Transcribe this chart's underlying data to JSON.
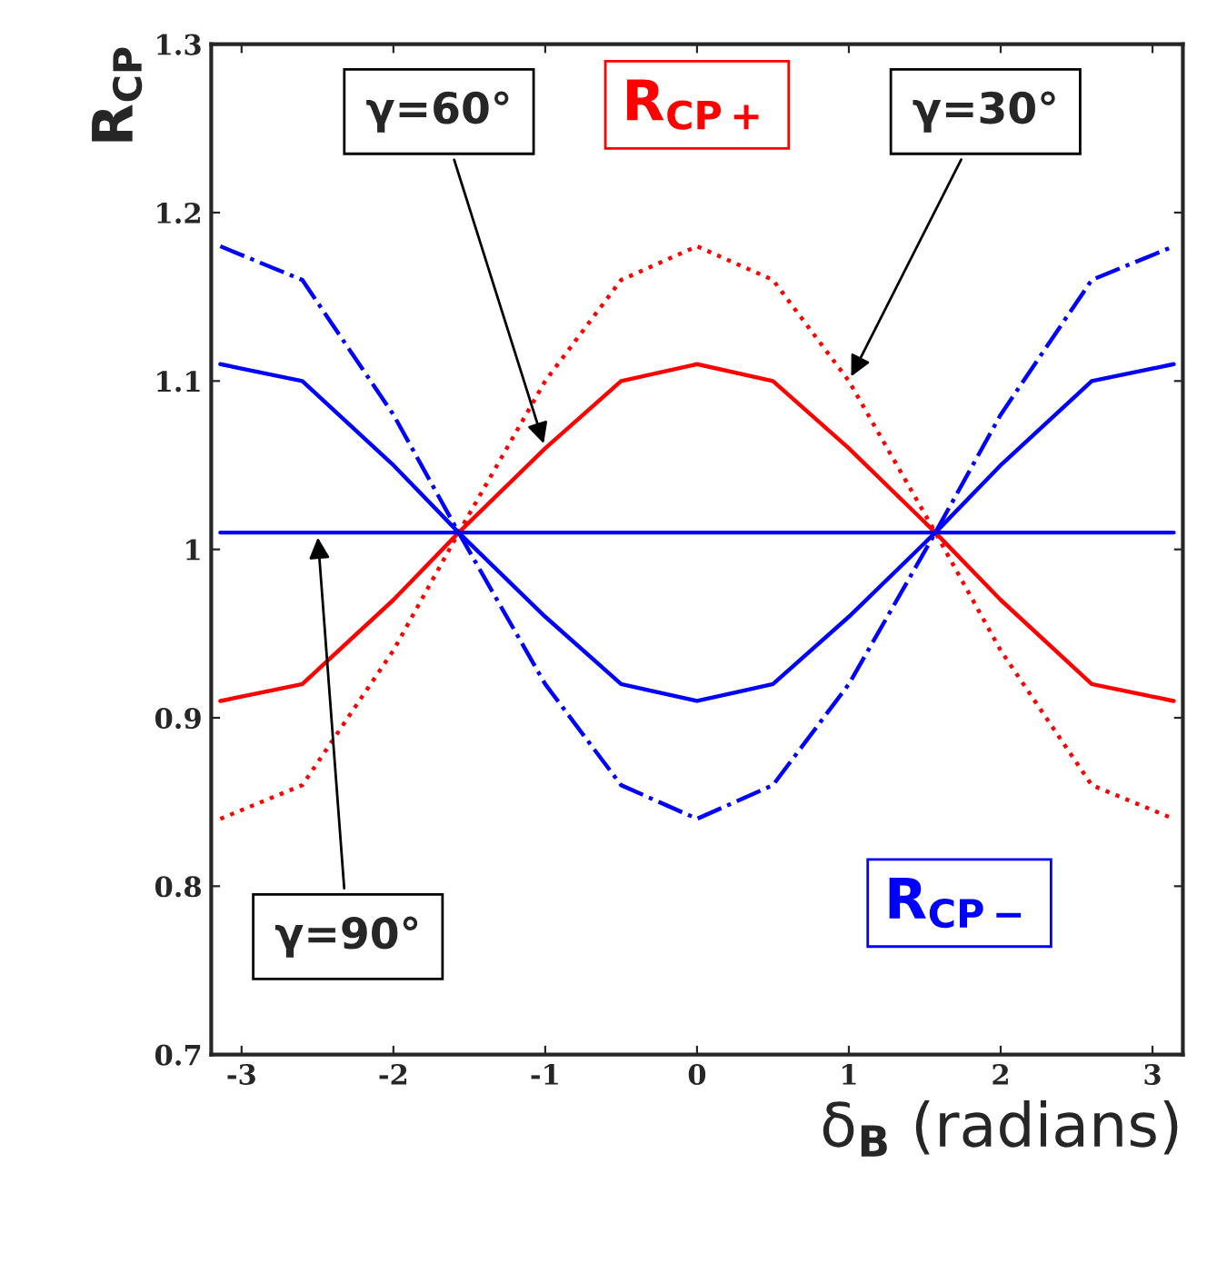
{
  "chart_data": {
    "type": "line",
    "xlabel": "δ$_{B}$ (radians)",
    "ylabel": "R$_{CP}$",
    "x": [
      -3.14,
      -2.6,
      -2.0,
      -1.57,
      -1.0,
      -0.5,
      0.0,
      0.5,
      1.0,
      1.57,
      2.0,
      2.6,
      3.14
    ],
    "series": [
      {
        "name": "R$_{CP+}$",
        "color": "#ff0000",
        "line_style": "solid",
        "values": [
          0.91,
          0.92,
          0.97,
          1.01,
          1.06,
          1.1,
          1.11,
          1.1,
          1.06,
          1.01,
          0.97,
          0.92,
          0.91
        ]
      },
      {
        "color": "#ff0000",
        "line_style": "dotted",
        "values": [
          0.84,
          0.86,
          0.94,
          1.01,
          1.1,
          1.16,
          1.18,
          1.16,
          1.1,
          1.01,
          0.94,
          0.86,
          0.84
        ]
      },
      {
        "name": "R$_{CP−}$",
        "color": "#0000ff",
        "line_style": "solid",
        "values": [
          1.11,
          1.1,
          1.05,
          1.01,
          0.96,
          0.92,
          0.91,
          0.92,
          0.96,
          1.01,
          1.05,
          1.1,
          1.11
        ]
      },
      {
        "color": "#0000ff",
        "line_style": "dashdot",
        "values": [
          1.18,
          1.16,
          1.08,
          1.01,
          0.92,
          0.86,
          0.84,
          0.86,
          0.92,
          1.01,
          1.08,
          1.16,
          1.18
        ]
      },
      {
        "color": "#0000ff",
        "line_style": "solid",
        "x": [
          -3.14,
          3.14
        ],
        "values": [
          1.01,
          1.01
        ]
      }
    ],
    "annotations": [
      {
        "text": "γ=60°",
        "x": -1.0,
        "y": 1.06
      },
      {
        "text": "γ=30°",
        "x": 1.0,
        "y": 1.1
      },
      {
        "text": "γ=90°",
        "x": -2.5,
        "y": 1.01
      }
    ],
    "xlim": [
      -3.2,
      3.2
    ],
    "xticks": [
      -3,
      -2,
      -1,
      0,
      1,
      2,
      3
    ],
    "ylim": [
      0.7,
      1.3
    ],
    "yticks": [
      0.7,
      0.8,
      0.9,
      1,
      1.1,
      1.2,
      1.3
    ],
    "grid": false,
    "legend": false
  }
}
